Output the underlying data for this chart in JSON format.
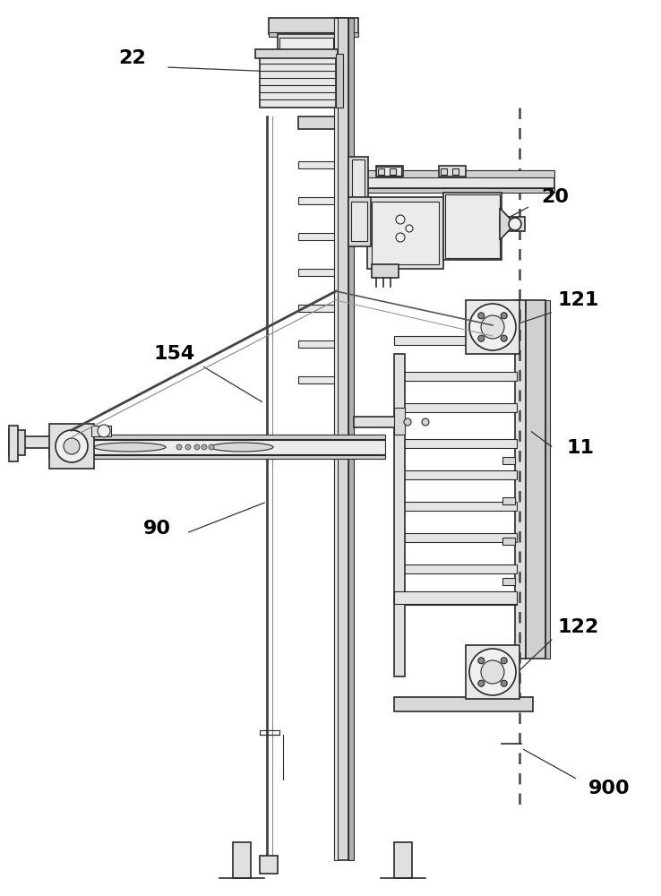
{
  "bg_color": "#ffffff",
  "lc": "#2a2a2a",
  "lc_light": "#888888",
  "fc_light": "#f0f0f0",
  "fc_mid": "#e0e0e0",
  "fc_dark": "#c8c8c8",
  "fc_vdark": "#aaaaaa",
  "figsize": [
    7.38,
    10.0
  ],
  "dpi": 100,
  "label_fontsize": 16
}
